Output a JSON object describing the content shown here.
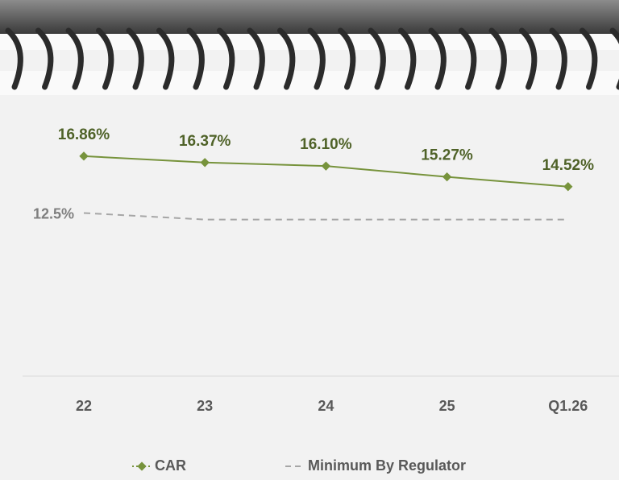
{
  "chart_data": {
    "type": "line",
    "categories": [
      "22",
      "23",
      "24",
      "25",
      "Q1.26"
    ],
    "series": [
      {
        "name": "CAR",
        "color": "#77933c",
        "label_color": "#4f6228",
        "dash": false,
        "marker": "diamond",
        "values": [
          16.86,
          16.37,
          16.1,
          15.27,
          14.52
        ],
        "value_labels": [
          "16.86%",
          "16.37%",
          "16.10%",
          "15.27%",
          "14.52%"
        ]
      },
      {
        "name": "Minimum By Regulator",
        "color": "#a6a6a6",
        "label_color": "#7f7f7f",
        "dash": true,
        "marker": "none",
        "values": [
          12.5,
          12,
          12,
          12,
          12
        ],
        "value_labels": [
          "12.5%",
          null,
          null,
          null,
          null
        ]
      }
    ],
    "ylim": [
      0,
      20
    ],
    "legend": "bottom"
  }
}
